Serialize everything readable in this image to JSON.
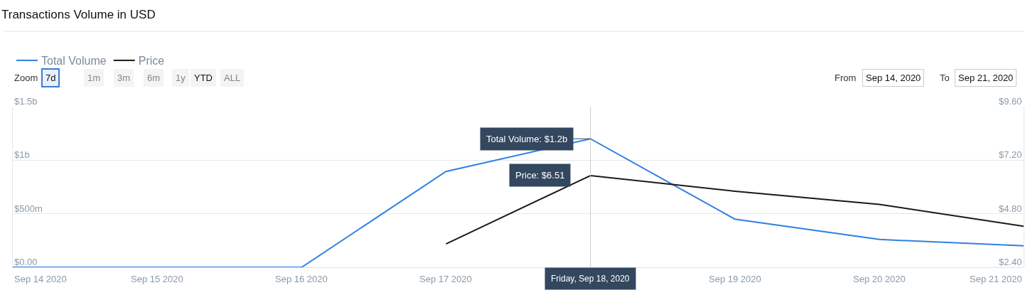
{
  "chart_data": {
    "type": "line",
    "title": "Transactions Volume in USD",
    "x": [
      "2020-09-14",
      "2020-09-15",
      "2020-09-16",
      "2020-09-17",
      "2020-09-18",
      "2020-09-19",
      "2020-09-20",
      "2020-09-21"
    ],
    "series": [
      {
        "name": "Total Volume",
        "color": "#2f80e4",
        "values": [
          0,
          0,
          0,
          895000000,
          1200000000,
          450000000,
          260000000,
          200000000
        ]
      },
      {
        "name": "Price",
        "color": "#1a1a1a",
        "axis": "y2",
        "values": [
          null,
          null,
          null,
          3.45,
          6.51,
          5.81,
          5.22,
          4.24
        ]
      }
    ],
    "xlim": [
      "2020-09-14",
      "2020-09-21"
    ],
    "xticks": [
      {
        "value": "2020-09-14",
        "label": "Sep 14 2020"
      },
      {
        "value": "2020-09-15",
        "label": "Sep 15 2020"
      },
      {
        "value": "2020-09-16",
        "label": "Sep 16 2020"
      },
      {
        "value": "2020-09-17",
        "label": "Sep 17 2020"
      },
      {
        "value": "2020-09-19",
        "label": "Sep 19 2020"
      },
      {
        "value": "2020-09-20",
        "label": "Sep 20 2020"
      },
      {
        "value": "2020-09-21",
        "label": "Sep 21 2020"
      }
    ],
    "ylim": [
      0,
      1500000000
    ],
    "yticks": [
      {
        "value": 0,
        "label": "$0.00"
      },
      {
        "value": 500000000,
        "label": "$500m"
      },
      {
        "value": 1000000000,
        "label": "$1b"
      },
      {
        "value": 1500000000,
        "label": "$1.5b"
      }
    ],
    "y2lim": [
      2.4,
      9.6
    ],
    "y2ticks": [
      {
        "value": 2.4,
        "label": "$2.40"
      },
      {
        "value": 4.8,
        "label": "$4.80"
      },
      {
        "value": 7.2,
        "label": "$7.20"
      },
      {
        "value": 9.6,
        "label": "$9.60"
      }
    ],
    "ref_lines": [
      {
        "axis": "x",
        "value": "2020-09-18",
        "label": "Friday, Sep 18, 2020",
        "color": "#cccccc"
      }
    ],
    "annotations": [
      "Zoom",
      "7d",
      "1m",
      "3m",
      "6m",
      "1y",
      "YTD",
      "ALL",
      "From",
      "Sep 14, 2020",
      "To",
      "Sep 21, 2020",
      {
        "text": "Total Volume: $1.2b",
        "x": "2020-09-18",
        "y": 1200000000
      },
      "Price: $6.51"
    ],
    "grid": "y",
    "legend": "top left",
    "marker": "none",
    "line_style": "solid"
  }
}
